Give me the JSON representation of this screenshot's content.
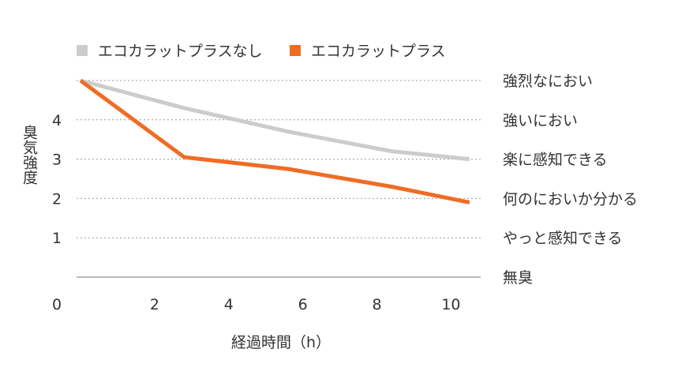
{
  "chart_data": {
    "type": "line",
    "xlabel": "経過時間（h）",
    "ylabel": "臭気強度",
    "x_origin_label": "0",
    "xlim": [
      0,
      10.8
    ],
    "ylim": [
      0,
      5
    ],
    "x_ticks": [
      2,
      4,
      6,
      8,
      10
    ],
    "y_ticks": [
      1,
      2,
      3,
      4
    ],
    "gridlines": [
      1,
      2,
      3,
      4,
      5
    ],
    "intensity_labels": [
      {
        "level": 5,
        "label": "強烈なにおい"
      },
      {
        "level": 4,
        "label": "強いにおい"
      },
      {
        "level": 3,
        "label": "楽に感知できる"
      },
      {
        "level": 2,
        "label": "何のにおいか分かる"
      },
      {
        "level": 1,
        "label": "やっと感知できる"
      },
      {
        "level": 0,
        "label": "無臭"
      }
    ],
    "legend_position": "top-left",
    "series": [
      {
        "name": "エコカラットプラスなし",
        "color": "#cccccc",
        "points": [
          [
            0,
            5
          ],
          [
            2.8,
            4.3
          ],
          [
            5.6,
            3.7
          ],
          [
            8.4,
            3.2
          ],
          [
            10.5,
            3.0
          ]
        ]
      },
      {
        "name": "エコカラットプラス",
        "color": "#ef6c24",
        "points": [
          [
            0,
            5
          ],
          [
            2.8,
            3.05
          ],
          [
            5.6,
            2.75
          ],
          [
            8.4,
            2.3
          ],
          [
            10.5,
            1.9
          ]
        ]
      }
    ]
  }
}
